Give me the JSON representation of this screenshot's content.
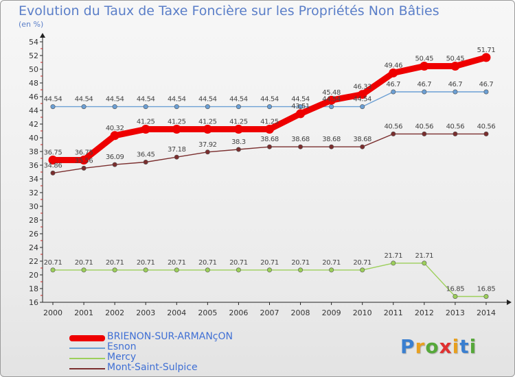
{
  "title": "Evolution du Taux de Taxe Foncière sur les Propriétés Non Bâties",
  "subtitle": "(en %)",
  "logo": "Proxiti",
  "chart_data": {
    "type": "line",
    "title": "Evolution du Taux de Taxe Foncière sur les Propriétés Non Bâties",
    "ylabel": "(en %)",
    "xlabel": "",
    "ylim": [
      16,
      54
    ],
    "yticks": [
      16,
      18,
      20,
      22,
      24,
      26,
      28,
      30,
      32,
      34,
      36,
      38,
      40,
      42,
      44,
      46,
      48,
      50,
      52,
      54
    ],
    "categories": [
      "2000",
      "2001",
      "2002",
      "2003",
      "2004",
      "2005",
      "2006",
      "2007",
      "2008",
      "2009",
      "2010",
      "2011",
      "2012",
      "2013",
      "2014"
    ],
    "grid": false,
    "legend_position": "bottom-left",
    "series": [
      {
        "name": "BRIENON-SUR-ARMANçON",
        "color": "#ee0000",
        "values": [
          36.75,
          36.75,
          40.32,
          41.25,
          41.25,
          41.25,
          41.25,
          41.25,
          43.51,
          45.48,
          46.33,
          49.46,
          50.45,
          50.45,
          51.71
        ],
        "labels": [
          "36.75",
          "36.75",
          "40.32",
          "41.25",
          "41.25",
          "41.25",
          "41.25",
          "41.25",
          "43.51",
          "45.48",
          "46.33",
          "49.46",
          "50.45",
          "50.45",
          "51.71"
        ]
      },
      {
        "name": "Esnon",
        "color": "#6b9fd4",
        "values": [
          44.54,
          44.54,
          44.54,
          44.54,
          44.54,
          44.54,
          44.54,
          44.54,
          44.54,
          44.54,
          44.54,
          46.7,
          46.7,
          46.7,
          46.7
        ],
        "labels": [
          "44.54",
          "44.54",
          "44.54",
          "44.54",
          "44.54",
          "44.54",
          "44.54",
          "44.54",
          "44.54",
          "44.54",
          "44.54",
          "46.7",
          "46.7",
          "46.7",
          "46.7"
        ]
      },
      {
        "name": "Mercy",
        "color": "#9ccf5a",
        "values": [
          20.71,
          20.71,
          20.71,
          20.71,
          20.71,
          20.71,
          20.71,
          20.71,
          20.71,
          20.71,
          20.71,
          21.71,
          21.71,
          16.85,
          16.85
        ],
        "labels": [
          "20.71",
          "20.71",
          "20.71",
          "20.71",
          "20.71",
          "20.71",
          "20.71",
          "20.71",
          "20.71",
          "20.71",
          "20.71",
          "21.71",
          "21.71",
          "16.85",
          "16.85"
        ]
      },
      {
        "name": "Mont-Saint-Sulpice",
        "color": "#7a2e2e",
        "values": [
          34.86,
          35.56,
          36.09,
          36.45,
          37.18,
          37.92,
          38.3,
          38.68,
          38.68,
          38.68,
          38.68,
          40.56,
          40.56,
          40.56,
          40.56
        ],
        "labels": [
          "34.86",
          "35.56",
          "36.09",
          "36.45",
          "37.18",
          "37.92",
          "38.3",
          "38.68",
          "38.68",
          "38.68",
          "38.68",
          "40.56",
          "40.56",
          "40.56",
          "40.56"
        ]
      }
    ]
  }
}
